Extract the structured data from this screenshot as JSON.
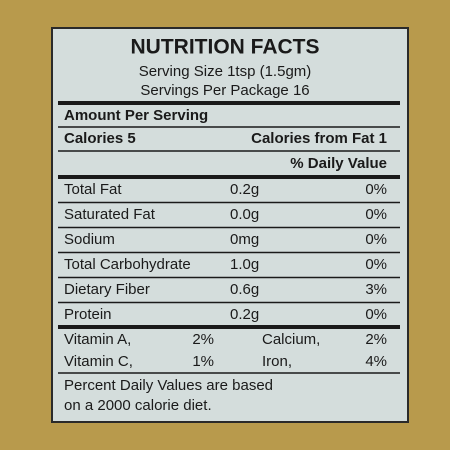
{
  "header": {
    "title": "NUTRITION FACTS",
    "serving_size": "Serving Size 1tsp (1.5gm)",
    "servings": "Servings Per Package 16"
  },
  "amount_per_serving": "Amount Per Serving",
  "calories": "Calories 5",
  "calories_from_fat": "Calories from Fat 1",
  "daily_value_header": "% Daily Value",
  "nutrients": [
    [
      "Total Fat",
      "0.2g",
      "0%"
    ],
    [
      "Saturated Fat",
      "0.0g",
      "0%"
    ],
    [
      "Sodium",
      "0mg",
      "0%"
    ],
    [
      "Total Carbohydrate",
      "1.0g",
      "0%"
    ],
    [
      "Dietary Fiber",
      "0.6g",
      "3%"
    ],
    [
      "Protein",
      "0.2g",
      "0%"
    ]
  ],
  "vitamins": [
    [
      "Vitamin A,",
      "2%",
      "Calcium,",
      "2%"
    ],
    [
      "Vitamin C,",
      "1%",
      "Iron,",
      "4%"
    ]
  ],
  "footnote": [
    "Percent Daily Values are based",
    "on a 2000 calorie diet."
  ]
}
